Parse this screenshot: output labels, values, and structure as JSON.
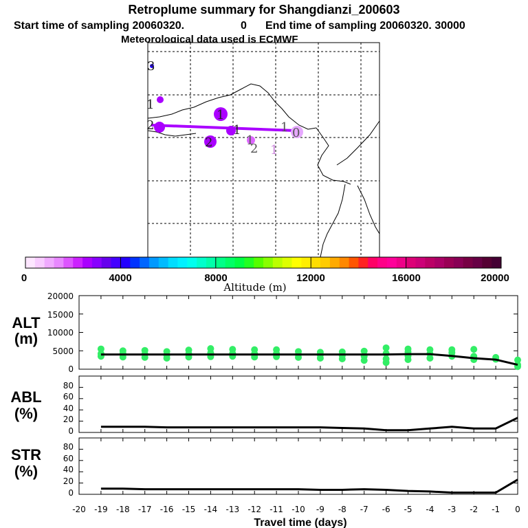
{
  "title": "Retroplume summary for Shangdianzi_200603",
  "subtitle_start_label": "Start time of sampling 20060320.",
  "subtitle_start_value": "0",
  "subtitle_end_label": "End time of sampling 20060320. 30000",
  "subtitle_met": "Meteorological data used is ECMWF",
  "colorbar": {
    "ticks": [
      "0",
      "4000",
      "8000",
      "12000",
      "16000",
      "20000"
    ],
    "label": "Altitude (m)"
  },
  "map": {
    "trajectory_color": "#aa00ff",
    "labels": [
      "3",
      "1",
      "2",
      "1",
      "2",
      "1",
      "2",
      "1",
      "0",
      "1",
      "1"
    ]
  },
  "chart_data": [
    {
      "type": "line",
      "panel_label_1": "ALT",
      "panel_label_2": "(m)",
      "ylim": [
        0,
        20000
      ],
      "yticks": [
        "20000",
        "15000",
        "10000",
        "5000",
        "0"
      ],
      "x": [
        -19,
        -18,
        -17,
        -16,
        -15,
        -14,
        -13,
        -12,
        -11,
        -10,
        -9,
        -8,
        -7,
        -6,
        -5,
        -4,
        -3,
        -2,
        -1,
        0
      ],
      "series": [
        {
          "name": "median altitude",
          "values": [
            4000,
            4000,
            4000,
            4000,
            4000,
            4000,
            4000,
            4000,
            4000,
            4000,
            4000,
            4000,
            4000,
            4000,
            4100,
            4100,
            3600,
            3000,
            2600,
            1200
          ]
        }
      ],
      "scatter_color": "#33ee66",
      "scatter": [
        {
          "x": -19,
          "y": [
            3500,
            4200,
            5500
          ]
        },
        {
          "x": -18,
          "y": [
            3300,
            4300,
            5000
          ]
        },
        {
          "x": -17,
          "y": [
            3200,
            4100,
            5100
          ]
        },
        {
          "x": -16,
          "y": [
            3000,
            3800,
            4800
          ]
        },
        {
          "x": -15,
          "y": [
            3300,
            4200,
            5200
          ]
        },
        {
          "x": -14,
          "y": [
            3400,
            4400,
            5600
          ]
        },
        {
          "x": -13,
          "y": [
            3500,
            4300,
            5400
          ]
        },
        {
          "x": -12,
          "y": [
            3300,
            4200,
            5300
          ]
        },
        {
          "x": -11,
          "y": [
            3400,
            4300,
            5300
          ]
        },
        {
          "x": -10,
          "y": [
            3200,
            4000,
            4800
          ]
        },
        {
          "x": -9,
          "y": [
            3000,
            3900,
            4600
          ]
        },
        {
          "x": -8,
          "y": [
            2800,
            3700,
            4700
          ]
        },
        {
          "x": -7,
          "y": [
            2400,
            3500,
            4900
          ]
        },
        {
          "x": -6,
          "y": [
            1800,
            2800,
            4300,
            5800
          ]
        },
        {
          "x": -5,
          "y": [
            2600,
            3600,
            4700,
            5500
          ]
        },
        {
          "x": -4,
          "y": [
            3000,
            4200,
            5300
          ]
        },
        {
          "x": -3,
          "y": [
            3500,
            4500,
            5300
          ]
        },
        {
          "x": -2,
          "y": [
            2600,
            3500,
            5400
          ]
        },
        {
          "x": -1,
          "y": [
            2700,
            3200
          ]
        },
        {
          "x": 0,
          "y": [
            700,
            1200,
            2500
          ]
        }
      ]
    },
    {
      "type": "line",
      "panel_label_1": "ABL",
      "panel_label_2": "(%)",
      "ylim": [
        0,
        100
      ],
      "yticks": [
        "80",
        "60",
        "40",
        "20",
        "0"
      ],
      "x": [
        -19,
        -18,
        -17,
        -16,
        -15,
        -14,
        -13,
        -12,
        -11,
        -10,
        -9,
        -8,
        -7,
        -6,
        -5,
        -4,
        -3,
        -2,
        -1,
        0
      ],
      "series": [
        {
          "name": "ABL fraction",
          "values": [
            10,
            10,
            10,
            9,
            9,
            9,
            9,
            9,
            9,
            9,
            9,
            8,
            7,
            4,
            4,
            7,
            10,
            7,
            7,
            26
          ]
        }
      ]
    },
    {
      "type": "line",
      "panel_label_1": "STR",
      "panel_label_2": "(%)",
      "ylim": [
        0,
        100
      ],
      "yticks": [
        "80",
        "60",
        "40",
        "20",
        "0"
      ],
      "x": [
        -19,
        -18,
        -17,
        -16,
        -15,
        -14,
        -13,
        -12,
        -11,
        -10,
        -9,
        -8,
        -7,
        -6,
        -5,
        -4,
        -3,
        -2,
        -1,
        0
      ],
      "xticks": [
        "-20",
        "-19",
        "-18",
        "-17",
        "-16",
        "-15",
        "-14",
        "-13",
        "-12",
        "-11",
        "-10",
        "-9",
        "-8",
        "-7",
        "-6",
        "-5",
        "-4",
        "-3",
        "-2",
        "-1",
        "0"
      ],
      "xlabel": "Travel time (days)",
      "series": [
        {
          "name": "stratosphere fraction",
          "values": [
            10,
            10,
            9,
            9,
            9,
            9,
            9,
            9,
            9,
            9,
            8,
            8,
            9,
            8,
            6,
            5,
            3,
            3,
            3,
            26
          ]
        }
      ]
    }
  ]
}
